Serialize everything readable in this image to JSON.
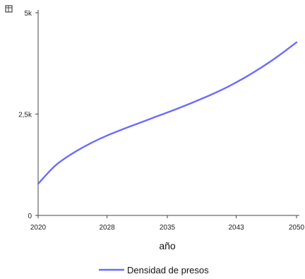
{
  "chart_data": {
    "type": "line",
    "title": "",
    "xlabel": "año",
    "ylabel": "",
    "x": [
      2020,
      2022,
      2024,
      2026,
      2028,
      2030,
      2032,
      2034,
      2036,
      2038,
      2040,
      2042,
      2044,
      2046,
      2048,
      2050
    ],
    "xlim": [
      2020,
      2050
    ],
    "ylim": [
      0,
      5000
    ],
    "xticks": [
      2020,
      2028,
      2035,
      2043,
      2050
    ],
    "xtick_labels": [
      "2020",
      "2028",
      "2035",
      "2043",
      "2050"
    ],
    "yticks": [
      0,
      2500,
      5000
    ],
    "ytick_labels": [
      "0",
      "2,5k",
      "5k"
    ],
    "series": [
      {
        "name": "Densidad de presos",
        "color": "#6b6bff",
        "values": [
          780,
          1230,
          1530,
          1770,
          1970,
          2140,
          2300,
          2460,
          2620,
          2790,
          2970,
          3170,
          3400,
          3660,
          3950,
          4270
        ]
      }
    ],
    "grid": false,
    "legend": "bottom"
  },
  "corner_icon": "data-table-icon"
}
